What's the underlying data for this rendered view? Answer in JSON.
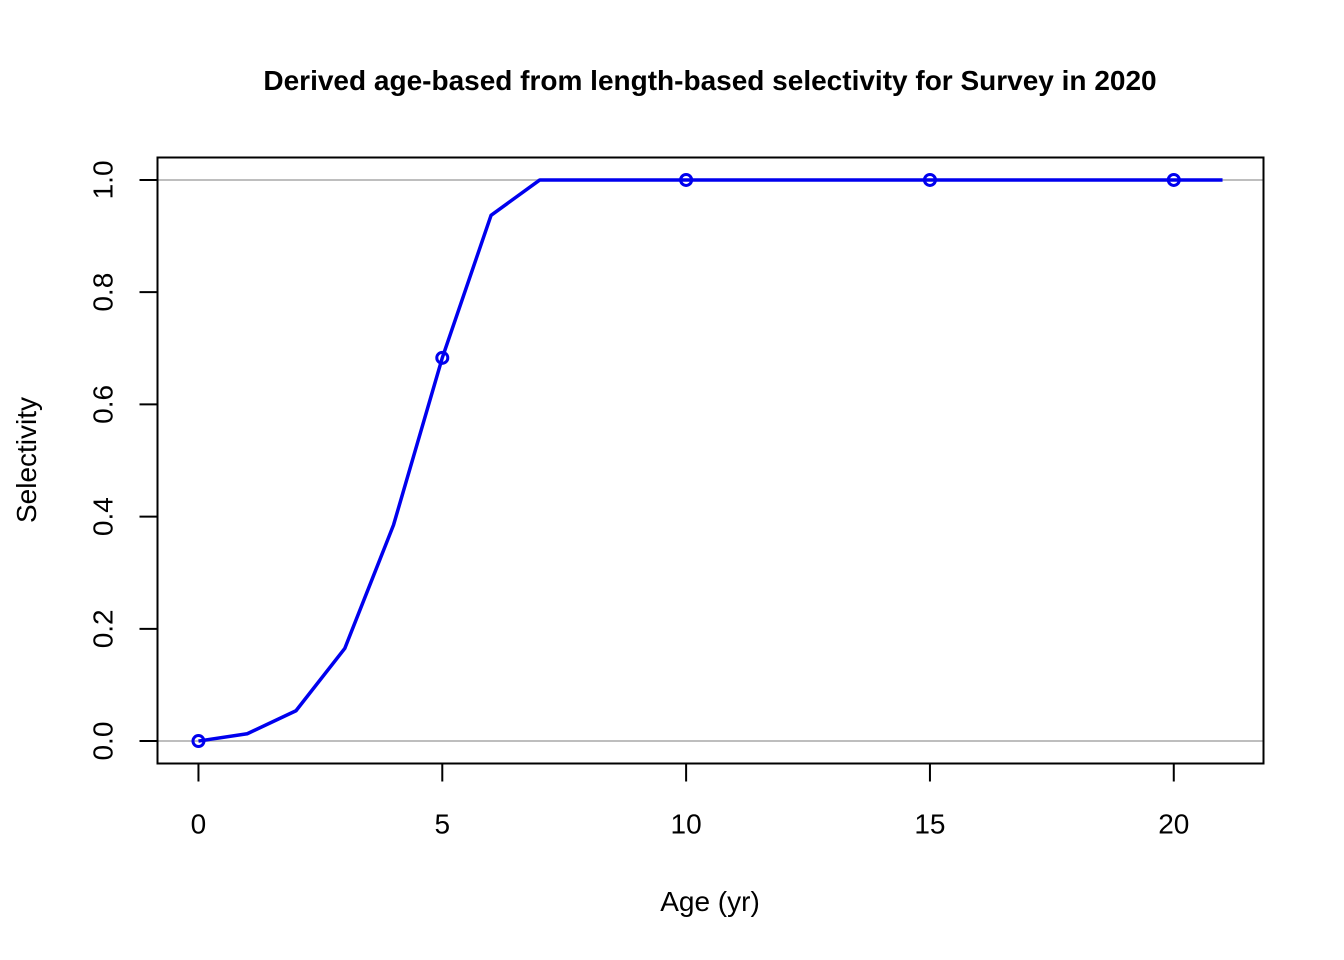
{
  "chart_data": {
    "type": "line",
    "title": "Derived age-based from length-based selectivity for Survey in 2020",
    "xlabel": "Age (yr)",
    "ylabel": "Selectivity",
    "xlim": [
      -0.84,
      21.84
    ],
    "ylim": [
      -0.04,
      1.04
    ],
    "xticks": [
      0,
      5,
      10,
      15,
      20
    ],
    "yticks": [
      0.0,
      0.2,
      0.4,
      0.6,
      0.8,
      1.0
    ],
    "xtick_labels": [
      "0",
      "5",
      "10",
      "15",
      "20"
    ],
    "ytick_labels": [
      "0.0",
      "0.2",
      "0.4",
      "0.6",
      "0.8",
      "1.0"
    ],
    "reference_lines_y": [
      0,
      1
    ],
    "series": [
      {
        "color": "#0000ee",
        "x": [
          0,
          1,
          2,
          3,
          4,
          5,
          6,
          7,
          8,
          9,
          10,
          11,
          12,
          13,
          14,
          15,
          16,
          17,
          18,
          19,
          20,
          21
        ],
        "y": [
          0.0,
          0.013,
          0.054,
          0.165,
          0.385,
          0.683,
          0.937,
          1.0,
          1.0,
          1.0,
          1.0,
          1.0,
          1.0,
          1.0,
          1.0,
          1.0,
          1.0,
          1.0,
          1.0,
          1.0,
          1.0,
          1.0
        ],
        "marker_x": [
          0,
          5,
          10,
          15,
          20
        ]
      }
    ],
    "grid": false,
    "legend": "none"
  }
}
